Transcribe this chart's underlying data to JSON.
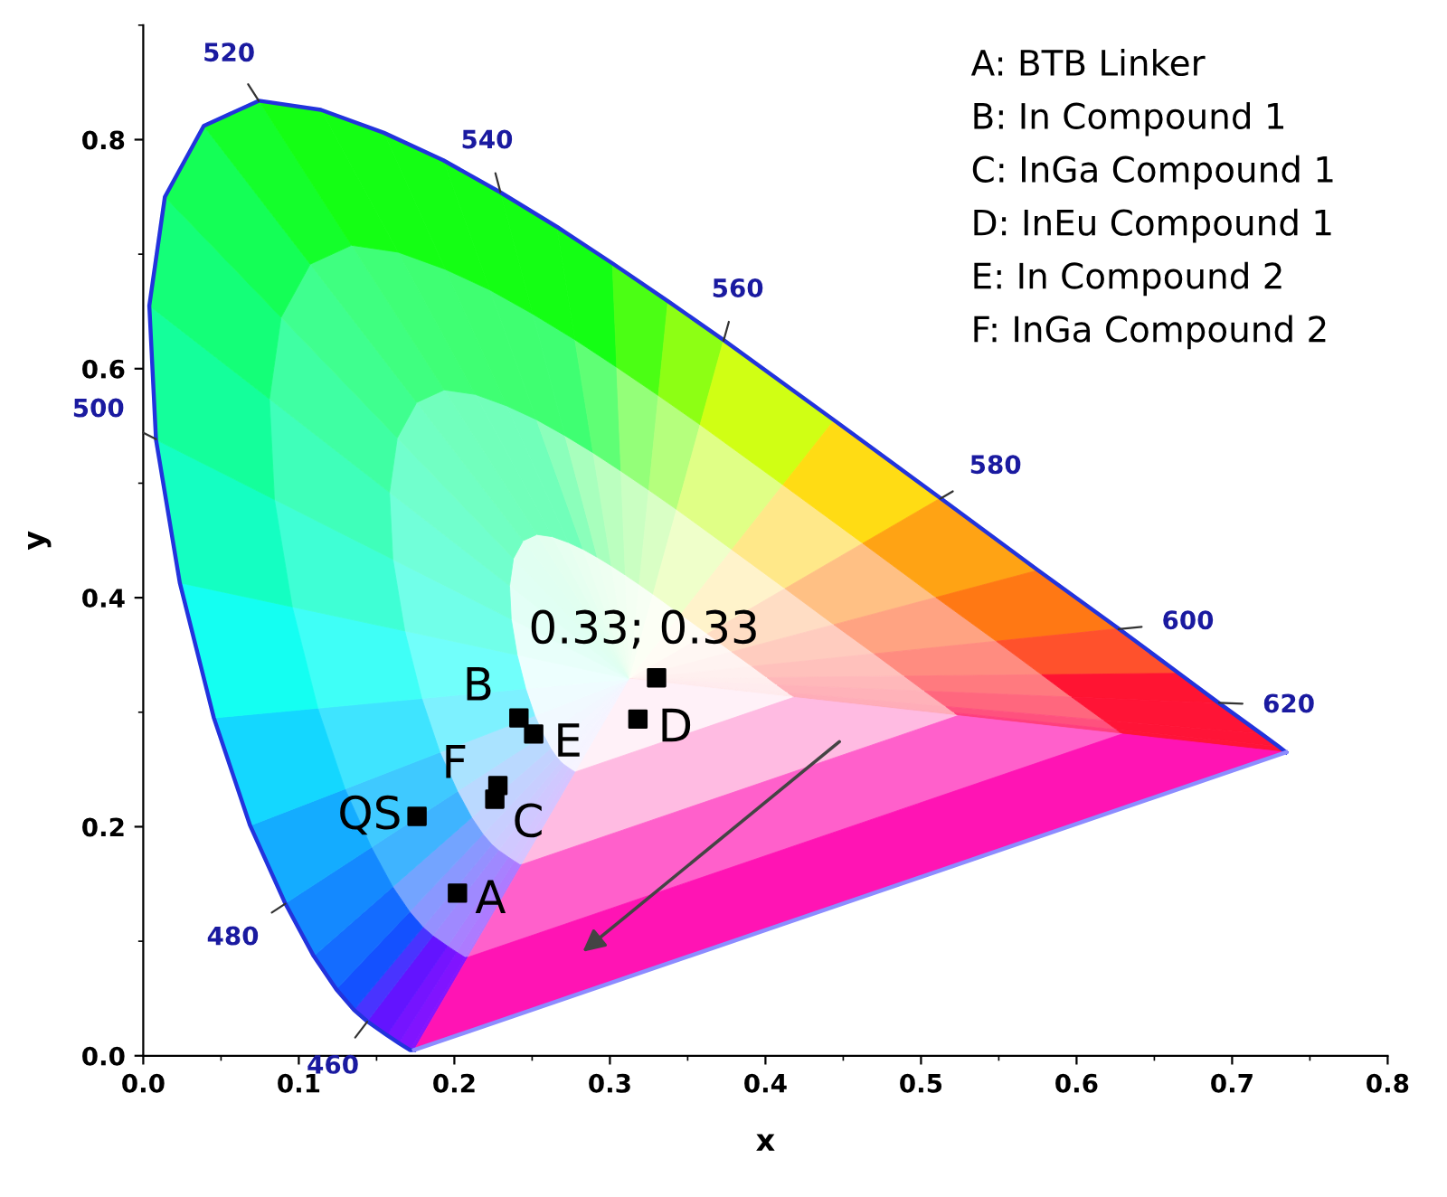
{
  "chart_data": {
    "type": "scatter",
    "xlabel": "x",
    "ylabel": "y",
    "xlim": [
      0,
      0.8
    ],
    "ylim": [
      0,
      0.9
    ],
    "xticks": [
      {
        "value": 0,
        "label": "0.0"
      },
      {
        "value": 0.1,
        "label": "0.1"
      },
      {
        "value": 0.2,
        "label": "0.2"
      },
      {
        "value": 0.3,
        "label": "0.3"
      },
      {
        "value": 0.4,
        "label": "0.4"
      },
      {
        "value": 0.5,
        "label": "0.5"
      },
      {
        "value": 0.6,
        "label": "0.6"
      },
      {
        "value": 0.7,
        "label": "0.7"
      },
      {
        "value": 0.8,
        "label": "0.8"
      }
    ],
    "yticks": [
      {
        "value": 0,
        "label": "0.0"
      },
      {
        "value": 0.2,
        "label": "0.2"
      },
      {
        "value": 0.4,
        "label": "0.4"
      },
      {
        "value": 0.6,
        "label": "0.6"
      },
      {
        "value": 0.8,
        "label": "0.8"
      }
    ],
    "grid": false,
    "legend": false,
    "series": [
      {
        "type": "line",
        "color": "#2233dd",
        "marker": "none",
        "x": [
          0.1741,
          0.1714,
          0.1644,
          0.1566,
          0.144,
          0.1355,
          0.1241,
          0.1096,
          0.0913,
          0.0687,
          0.0454,
          0.0235,
          0.0082,
          0.0039,
          0.0139,
          0.0389,
          0.0743,
          0.1142,
          0.1547,
          0.1929,
          0.2296,
          0.2658,
          0.3016,
          0.3373,
          0.3731,
          0.4441,
          0.5125,
          0.5752,
          0.627,
          0.6658,
          0.6915,
          0.719,
          0.73,
          0.7347
        ],
        "values": [
          0.005,
          0.005,
          0.011,
          0.018,
          0.03,
          0.04,
          0.058,
          0.087,
          0.133,
          0.201,
          0.295,
          0.413,
          0.538,
          0.655,
          0.75,
          0.812,
          0.834,
          0.826,
          0.806,
          0.782,
          0.754,
          0.724,
          0.692,
          0.659,
          0.625,
          0.555,
          0.487,
          0.424,
          0.373,
          0.334,
          0.308,
          0.281,
          0.27,
          0.265
        ]
      },
      {
        "type": "line",
        "color": "#8c8cff",
        "marker": "none",
        "x": [
          0.1741,
          0.7347
        ],
        "values": [
          0.005,
          0.265
        ]
      },
      {
        "color": "#000000",
        "marker": "square",
        "x": [
          0.176,
          0.202,
          0.226,
          0.228,
          0.2415,
          0.251,
          0.318,
          0.33
        ],
        "values": [
          0.209,
          0.142,
          0.224,
          0.236,
          0.295,
          0.281,
          0.294,
          0.33
        ]
      }
    ],
    "annotations": [
      {
        "text": "460",
        "x": 0.144,
        "y": 0.0297
      },
      {
        "text": "480",
        "x": 0.0913,
        "y": 0.1327
      },
      {
        "text": "500",
        "x": 0.0082,
        "y": 0.5384
      },
      {
        "text": "520",
        "x": 0.0743,
        "y": 0.8338
      },
      {
        "text": "540",
        "x": 0.2296,
        "y": 0.7543
      },
      {
        "text": "560",
        "x": 0.3731,
        "y": 0.6245
      },
      {
        "text": "580",
        "x": 0.5125,
        "y": 0.4866
      },
      {
        "text": "600",
        "x": 0.627,
        "y": 0.3725
      },
      {
        "text": "620",
        "x": 0.6915,
        "y": 0.3083
      },
      {
        "text": "QS",
        "x": 0.176,
        "y": 0.209
      },
      {
        "text": "A",
        "x": 0.202,
        "y": 0.142
      },
      {
        "text": "C",
        "x": 0.226,
        "y": 0.224
      },
      {
        "text": "F",
        "x": 0.228,
        "y": 0.236
      },
      {
        "text": "B",
        "x": 0.2415,
        "y": 0.295
      },
      {
        "text": "E",
        "x": 0.251,
        "y": 0.281
      },
      {
        "text": "D",
        "x": 0.318,
        "y": 0.294
      },
      {
        "text": "0.33; 0.33",
        "x": 0.33,
        "y": 0.33
      },
      "A: BTB Linker",
      "B: In Compound 1",
      "C: InGa Compound 1",
      "D: InEu Compound 1",
      "E: In Compound 2",
      "F: InGa Compound 2"
    ]
  }
}
